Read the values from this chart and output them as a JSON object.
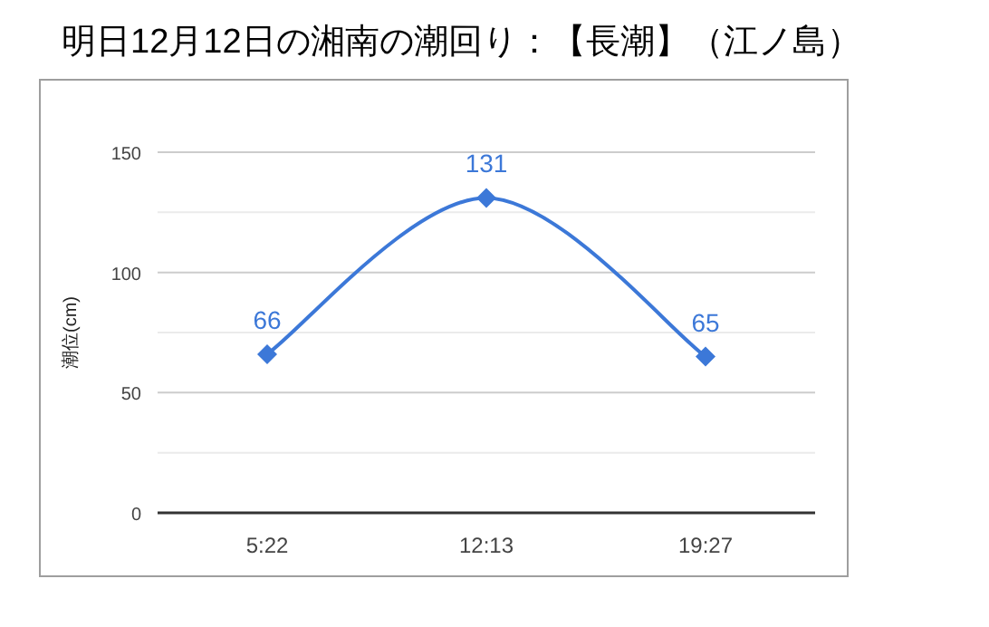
{
  "chart_data": {
    "type": "line",
    "title": "明日12月12日の湘南の潮回り：【長潮】（江ノ島）",
    "ylabel": "潮位(cm)",
    "categories": [
      "5:22",
      "12:13",
      "19:27"
    ],
    "values": [
      66,
      131,
      65
    ],
    "color": "#3c78d8",
    "ylim": [
      0,
      150
    ],
    "yticks": [
      0,
      {
        "value": 25,
        "label": null
      },
      50,
      {
        "value": 75,
        "label": null
      },
      100,
      {
        "value": 125,
        "label": null
      },
      150
    ],
    "grid": true,
    "marker": "diamond",
    "data_labels": true
  }
}
